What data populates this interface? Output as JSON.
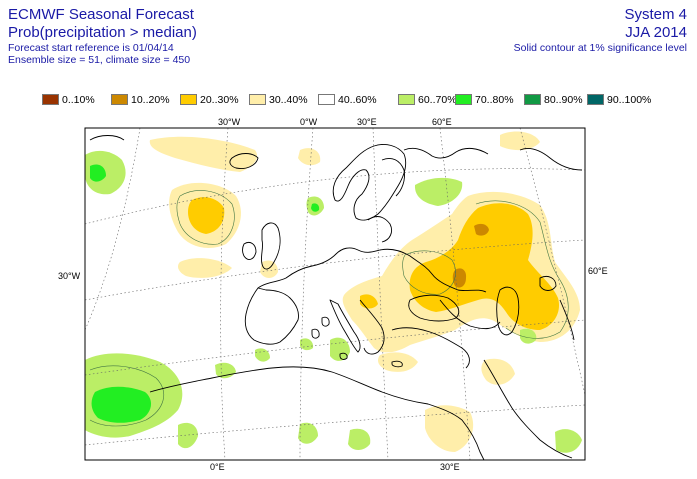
{
  "header": {
    "title": "ECMWF Seasonal Forecast",
    "subtitle": "Prob(precipitation > median)",
    "start_reference": "Forecast start reference is 01/04/14",
    "ensemble": "Ensemble size = 51, climate size = 450",
    "system": "System 4",
    "season": "JJA 2014",
    "note": "Solid contour at 1% significance level"
  },
  "legend": [
    {
      "label": "0..10%",
      "color": "#993300"
    },
    {
      "label": "10..20%",
      "color": "#cc8800"
    },
    {
      "label": "20..30%",
      "color": "#ffcc00"
    },
    {
      "label": "30..40%",
      "color": "#ffeeaa"
    },
    {
      "label": "40..60%",
      "color": "#ffffff"
    },
    {
      "label": "60..70%",
      "color": "#bbee66"
    },
    {
      "label": "70..80%",
      "color": "#22ee22"
    },
    {
      "label": "80..90%",
      "color": "#119944"
    },
    {
      "label": "90..100%",
      "color": "#006666"
    }
  ],
  "axes": {
    "top": [
      "30°W",
      "0°W",
      "30°E",
      "60°E"
    ],
    "left": "30°W",
    "right": "60°E",
    "bottom": [
      "0°E",
      "30°E"
    ]
  },
  "chart_data": {
    "type": "heatmap",
    "title": "Prob(precipitation > median)",
    "categories": [
      "0..10%",
      "10..20%",
      "20..30%",
      "30..40%",
      "40..60%",
      "60..70%",
      "70..80%",
      "80..90%",
      "90..100%"
    ],
    "grid": true
  }
}
